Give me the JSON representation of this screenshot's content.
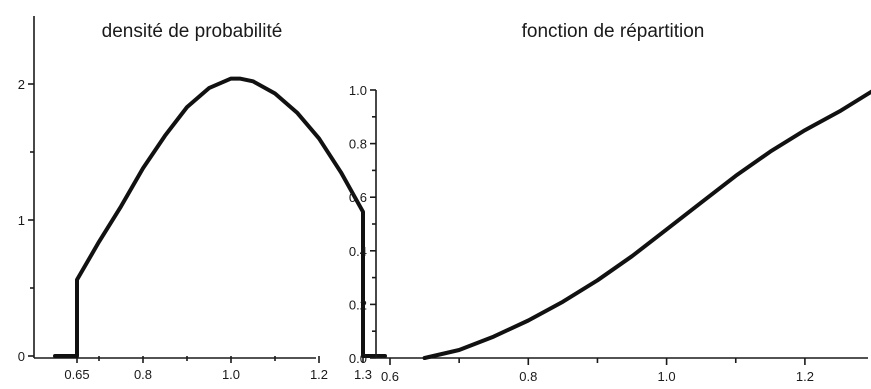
{
  "chart_data": [
    {
      "type": "line",
      "title": "densité de probabilité",
      "xlabel": "",
      "ylabel": "",
      "x_ticks": [
        "0.65",
        "0.8",
        "1.0",
        "1.2",
        "1.3"
      ],
      "y_ticks": [
        "0",
        "1",
        "2"
      ],
      "ylim": [
        0,
        2.55
      ],
      "grid": false,
      "series": [
        {
          "x": [
            0.6,
            0.65,
            0.65,
            0.7,
            0.75,
            0.8,
            0.85,
            0.9,
            0.95,
            1.0,
            1.02,
            1.05,
            1.1,
            1.15,
            1.2,
            1.25,
            1.3,
            1.3,
            1.35
          ],
          "values": [
            0,
            0,
            0.56,
            0.84,
            1.1,
            1.38,
            1.62,
            1.83,
            1.97,
            2.04,
            2.04,
            2.02,
            1.93,
            1.79,
            1.6,
            1.35,
            1.06,
            0,
            0
          ]
        }
      ]
    },
    {
      "type": "line",
      "title": "fonction de répartition",
      "xlabel": "",
      "ylabel": "",
      "x_ticks": [
        "0.6",
        "0.8",
        "1.0",
        "1.2"
      ],
      "y_ticks": [
        "0.0",
        "0.2",
        "0.4",
        "0.6",
        "0.8",
        "1.0"
      ],
      "ylim": [
        0,
        1.0
      ],
      "grid": false,
      "series": [
        {
          "x": [
            0.65,
            0.7,
            0.75,
            0.8,
            0.85,
            0.9,
            0.95,
            1.0,
            1.05,
            1.1,
            1.15,
            1.2,
            1.25,
            1.3
          ],
          "values": [
            0.0,
            0.03,
            0.08,
            0.14,
            0.21,
            0.29,
            0.38,
            0.48,
            0.58,
            0.68,
            0.77,
            0.85,
            0.92,
            1.0
          ]
        }
      ]
    }
  ]
}
